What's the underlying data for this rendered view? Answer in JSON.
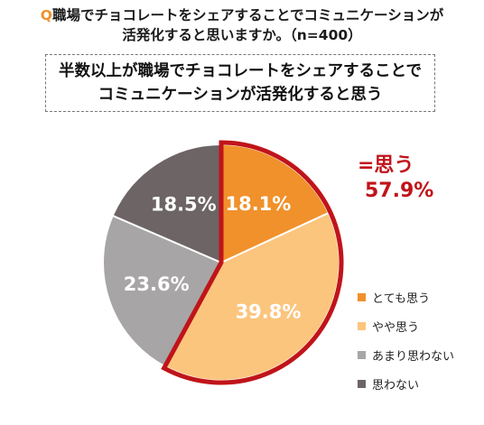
{
  "question": {
    "marker": "Q",
    "line1": "職場でチョコレートをシェアすることでコミュニケーションが",
    "line2": "活発化すると思いますか。（n=400）"
  },
  "callout": {
    "line1": "半数以上が職場でチョコレートをシェアすることで",
    "line2": "コミュニケーションが活発化すると思う"
  },
  "summary": {
    "label": "=思う",
    "value": "57.9%",
    "color": "#c0141a"
  },
  "chart_data": {
    "type": "pie",
    "title": "",
    "slices": [
      {
        "label": "とても思う",
        "value": 18.1,
        "display": "18.1%",
        "color": "#f0912b"
      },
      {
        "label": "やや思う",
        "value": 39.8,
        "display": "39.8%",
        "color": "#fbc57e"
      },
      {
        "label": "あまり思わない",
        "value": 23.6,
        "display": "23.6%",
        "color": "#a7a5a6"
      },
      {
        "label": "思わない",
        "value": 18.5,
        "display": "18.5%",
        "color": "#6c6465"
      }
    ],
    "highlighted_slices": [
      "とても思う",
      "やや思う"
    ],
    "highlight_color": "#c0141a",
    "legend_position": "right",
    "start": "12 o'clock, clockwise"
  }
}
